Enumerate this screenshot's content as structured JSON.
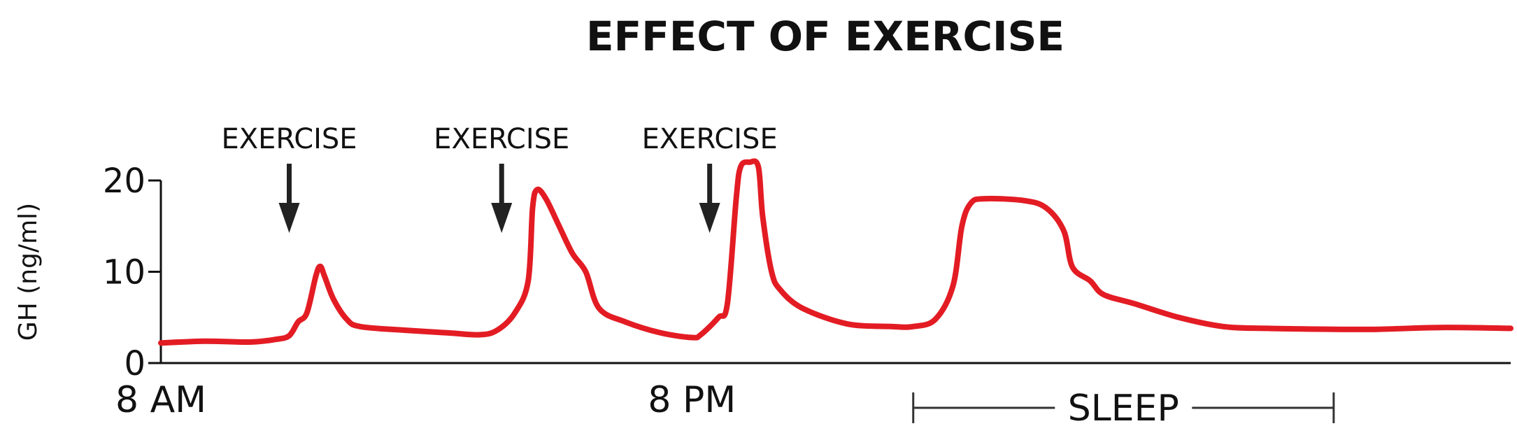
{
  "chart_data": {
    "type": "line",
    "title": "EFFECT OF EXERCISE",
    "ylabel": "GH (ng/ml)",
    "xlabel": "",
    "ylim": [
      0,
      20
    ],
    "yticks": [
      0,
      10,
      20
    ],
    "x_range_hours": [
      8,
      38.5
    ],
    "x_tick_labels": [
      {
        "x": 8,
        "label": "8 AM"
      },
      {
        "x": 20,
        "label": "8 PM"
      }
    ],
    "grid": false,
    "sleep_period": {
      "label": "SLEEP",
      "start": 25,
      "end": 34.5
    },
    "annotations": [
      {
        "label": "EXERCISE",
        "x": 10.9
      },
      {
        "label": "EXERCISE",
        "x": 15.7
      },
      {
        "label": "EXERCISE",
        "x": 20.4
      }
    ],
    "colors": {
      "series": "#e31c24",
      "axis": "#111111",
      "text": "#111111"
    },
    "series": [
      {
        "points": [
          [
            8.0,
            2.2
          ],
          [
            9.0,
            2.4
          ],
          [
            10.0,
            2.3
          ],
          [
            10.6,
            2.6
          ],
          [
            10.9,
            3.0
          ],
          [
            11.1,
            4.5
          ],
          [
            11.3,
            5.5
          ],
          [
            11.5,
            9.5
          ],
          [
            11.6,
            10.6
          ],
          [
            11.7,
            9.5
          ],
          [
            11.9,
            7.0
          ],
          [
            12.2,
            4.8
          ],
          [
            12.5,
            4.0
          ],
          [
            13.5,
            3.6
          ],
          [
            14.5,
            3.3
          ],
          [
            15.2,
            3.1
          ],
          [
            15.6,
            3.6
          ],
          [
            16.0,
            5.5
          ],
          [
            16.3,
            9.0
          ],
          [
            16.4,
            17.0
          ],
          [
            16.5,
            19.0
          ],
          [
            16.7,
            18.0
          ],
          [
            17.0,
            15.0
          ],
          [
            17.3,
            12.0
          ],
          [
            17.6,
            10.0
          ],
          [
            17.9,
            6.0
          ],
          [
            18.5,
            4.5
          ],
          [
            19.3,
            3.3
          ],
          [
            20.0,
            2.8
          ],
          [
            20.2,
            3.1
          ],
          [
            20.6,
            5.0
          ],
          [
            20.8,
            6.5
          ],
          [
            21.0,
            18.0
          ],
          [
            21.1,
            21.5
          ],
          [
            21.3,
            22.0
          ],
          [
            21.5,
            21.5
          ],
          [
            21.6,
            16.0
          ],
          [
            21.8,
            10.0
          ],
          [
            22.0,
            8.0
          ],
          [
            22.5,
            6.0
          ],
          [
            23.5,
            4.3
          ],
          [
            24.5,
            4.0
          ],
          [
            25.0,
            4.0
          ],
          [
            25.5,
            4.8
          ],
          [
            25.9,
            8.5
          ],
          [
            26.1,
            15.0
          ],
          [
            26.3,
            17.5
          ],
          [
            26.6,
            18.0
          ],
          [
            27.5,
            17.8
          ],
          [
            28.0,
            17.0
          ],
          [
            28.4,
            14.5
          ],
          [
            28.6,
            10.5
          ],
          [
            29.0,
            9.0
          ],
          [
            29.3,
            7.5
          ],
          [
            30.0,
            6.5
          ],
          [
            31.0,
            5.0
          ],
          [
            32.0,
            4.0
          ],
          [
            33.0,
            3.8
          ],
          [
            34.5,
            3.7
          ],
          [
            35.5,
            3.7
          ],
          [
            37.0,
            3.9
          ],
          [
            38.5,
            3.8
          ]
        ]
      }
    ]
  }
}
